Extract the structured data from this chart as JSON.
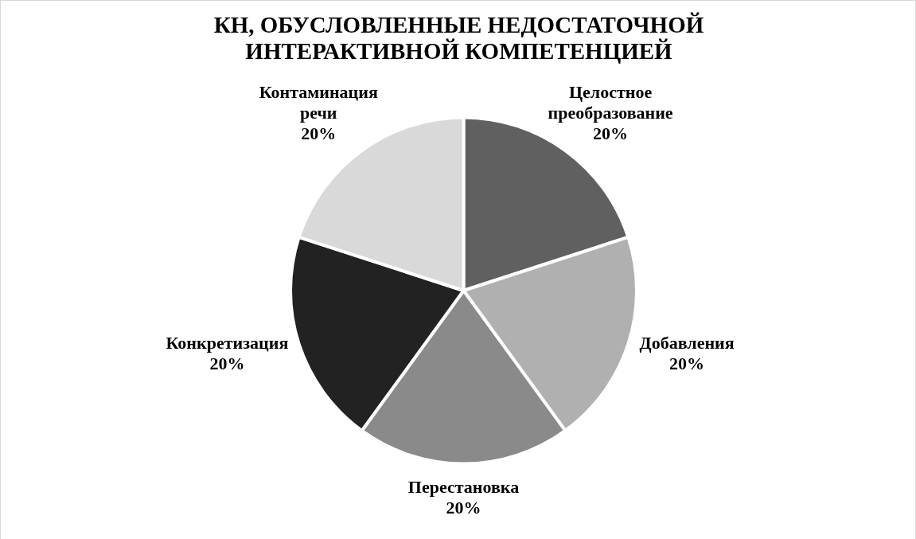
{
  "chart_data": {
    "type": "pie",
    "title": "КН, ОБУСЛОВЛЕННЫЕ НЕДОСТАТОЧНОЙ ИНТЕРАКТИВНОЙ КОМПЕТЕНЦИЕЙ",
    "categories": [
      "Целостное преобразование",
      "Добавления",
      "Перестановка",
      "Конкретизация",
      "Контаминация речи"
    ],
    "values": [
      20,
      20,
      20,
      20,
      20
    ],
    "colors": [
      "#606060",
      "#b0b0b0",
      "#8a8a8a",
      "#222222",
      "#d9d9d9"
    ],
    "value_labels": [
      "20%",
      "20%",
      "20%",
      "20%",
      "20%"
    ]
  }
}
